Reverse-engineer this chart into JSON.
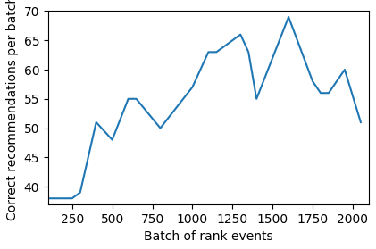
{
  "x": [
    100,
    250,
    300,
    400,
    500,
    600,
    650,
    800,
    1000,
    1100,
    1150,
    1300,
    1350,
    1400,
    1600,
    1750,
    1800,
    1850,
    1950,
    2050
  ],
  "y": [
    38,
    38,
    39,
    51,
    48,
    55,
    55,
    50,
    57,
    63,
    63,
    66,
    63,
    55,
    69,
    58,
    56,
    56,
    60,
    51
  ],
  "xlabel": "Batch of rank events",
  "ylabel": "Correct recommendations per batch",
  "xlim": [
    100,
    2100
  ],
  "ylim": [
    37,
    70
  ],
  "yticks": [
    40,
    45,
    50,
    55,
    60,
    65,
    70
  ],
  "xticks": [
    250,
    500,
    750,
    1000,
    1250,
    1500,
    1750,
    2000
  ],
  "line_color": "#1f77b4",
  "line_width": 1.5,
  "figsize": [
    4.21,
    2.79
  ],
  "dpi": 100
}
